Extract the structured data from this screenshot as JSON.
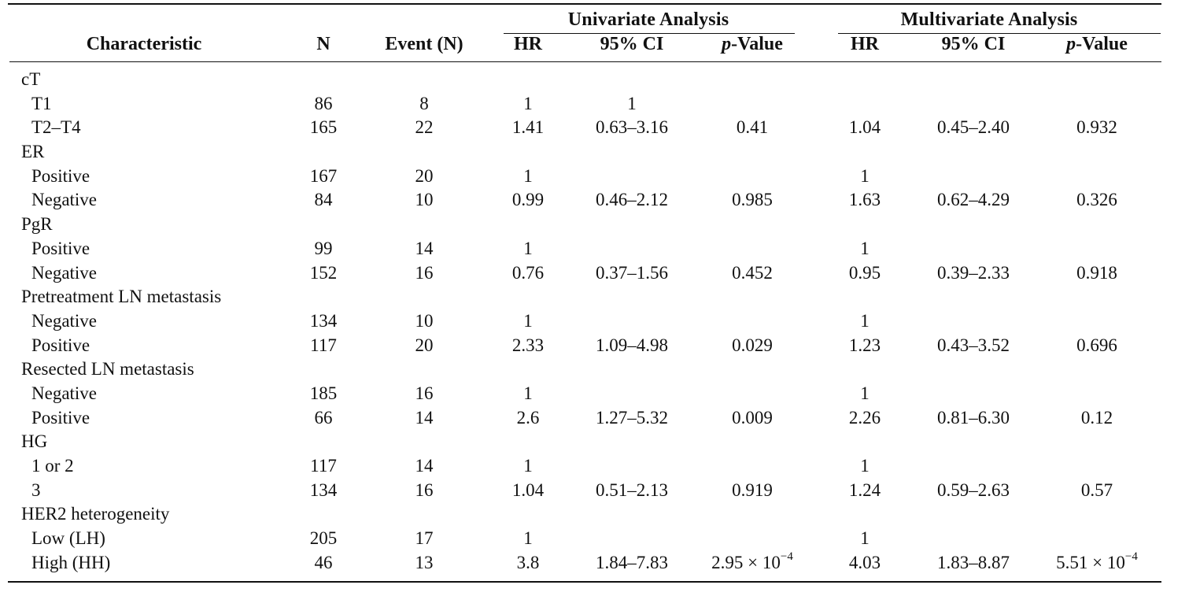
{
  "table": {
    "group_headers": {
      "univariate": "Univariate Analysis",
      "multivariate": "Multivariate Analysis"
    },
    "column_headers": {
      "characteristic": "Characteristic",
      "n": "N",
      "event": "Event (N)",
      "u_hr": "HR",
      "u_ci": "95% CI",
      "u_p_italic": "p",
      "u_p_rest": "-Value",
      "m_hr": "HR",
      "m_ci": "95% CI",
      "m_p_italic": "p",
      "m_p_rest": "-Value"
    },
    "rows": [
      {
        "label": "cT",
        "kind": "group"
      },
      {
        "label": "T1",
        "kind": "sub",
        "n": "86",
        "event": "8",
        "u_hr": "1",
        "u_ci": "1"
      },
      {
        "label": "T2–T4",
        "kind": "sub",
        "n": "165",
        "event": "22",
        "u_hr": "1.41",
        "u_ci": "0.63–3.16",
        "u_p": "0.41",
        "m_hr": "1.04",
        "m_ci": "0.45–2.40",
        "m_p": "0.932"
      },
      {
        "label": "ER",
        "kind": "group"
      },
      {
        "label": "Positive",
        "kind": "sub",
        "n": "167",
        "event": "20",
        "u_hr": "1",
        "m_hr": "1"
      },
      {
        "label": "Negative",
        "kind": "sub",
        "n": "84",
        "event": "10",
        "u_hr": "0.99",
        "u_ci": "0.46–2.12",
        "u_p": "0.985",
        "m_hr": "1.63",
        "m_ci": "0.62–4.29",
        "m_p": "0.326"
      },
      {
        "label": "PgR",
        "kind": "group"
      },
      {
        "label": "Positive",
        "kind": "sub",
        "n": "99",
        "event": "14",
        "u_hr": "1",
        "m_hr": "1"
      },
      {
        "label": "Negative",
        "kind": "sub",
        "n": "152",
        "event": "16",
        "u_hr": "0.76",
        "u_ci": "0.37–1.56",
        "u_p": "0.452",
        "m_hr": "0.95",
        "m_ci": "0.39–2.33",
        "m_p": "0.918"
      },
      {
        "label": "Pretreatment LN metastasis",
        "kind": "group"
      },
      {
        "label": "Negative",
        "kind": "sub",
        "n": "134",
        "event": "10",
        "u_hr": "1",
        "m_hr": "1"
      },
      {
        "label": "Positive",
        "kind": "sub",
        "n": "117",
        "event": "20",
        "u_hr": "2.33",
        "u_ci": "1.09–4.98",
        "u_p": "0.029",
        "m_hr": "1.23",
        "m_ci": "0.43–3.52",
        "m_p": "0.696"
      },
      {
        "label": "Resected LN metastasis",
        "kind": "group"
      },
      {
        "label": "Negative",
        "kind": "sub",
        "n": "185",
        "event": "16",
        "u_hr": "1",
        "m_hr": "1"
      },
      {
        "label": "Positive",
        "kind": "sub",
        "n": "66",
        "event": "14",
        "u_hr": "2.6",
        "u_ci": "1.27–5.32",
        "u_p": "0.009",
        "m_hr": "2.26",
        "m_ci": "0.81–6.30",
        "m_p": "0.12"
      },
      {
        "label": "HG",
        "kind": "group"
      },
      {
        "label": "1 or 2",
        "kind": "sub",
        "n": "117",
        "event": "14",
        "u_hr": "1",
        "m_hr": "1"
      },
      {
        "label": "3",
        "kind": "sub",
        "n": "134",
        "event": "16",
        "u_hr": "1.04",
        "u_ci": "0.51–2.13",
        "u_p": "0.919",
        "m_hr": "1.24",
        "m_ci": "0.59–2.63",
        "m_p": "0.57"
      },
      {
        "label": "HER2 heterogeneity",
        "kind": "group"
      },
      {
        "label": "Low (LH)",
        "kind": "sub",
        "n": "205",
        "event": "17",
        "u_hr": "1",
        "m_hr": "1"
      },
      {
        "label": "High (HH)",
        "kind": "sub",
        "n": "46",
        "event": "13",
        "u_hr": "3.8",
        "u_ci": "1.84–7.83",
        "u_p_base": "2.95 × 10",
        "u_p_exp": "−4",
        "m_hr": "4.03",
        "m_ci": "1.83–8.87",
        "m_p_base": "5.51 × 10",
        "m_p_exp": "−4"
      }
    ]
  }
}
